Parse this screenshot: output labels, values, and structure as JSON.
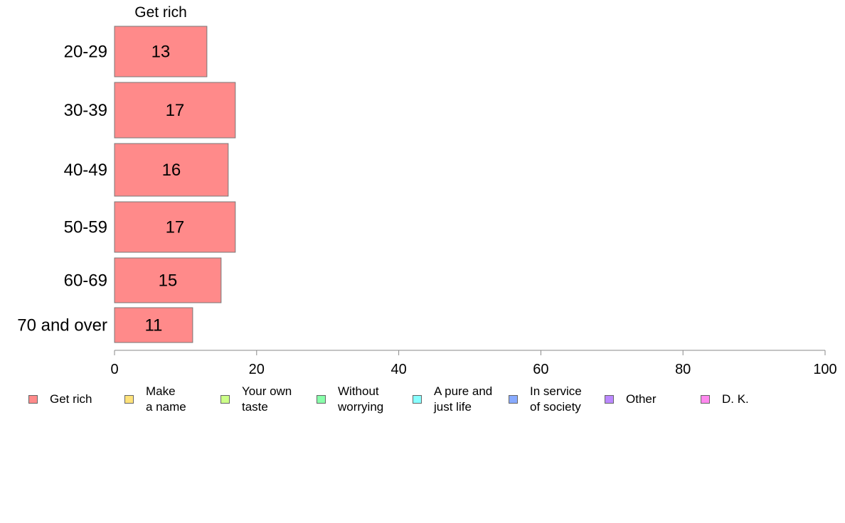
{
  "chart_data": {
    "type": "bar",
    "orientation": "horizontal",
    "panel_title": "Get rich",
    "categories": [
      "20-29",
      "30-39",
      "40-49",
      "50-59",
      "60-69",
      "70 and over"
    ],
    "series": [
      {
        "name": "Get rich",
        "color": "#ff8a8a",
        "values": [
          13,
          17,
          16,
          17,
          15,
          11
        ]
      }
    ],
    "xlim": [
      0,
      100
    ],
    "xticks": [
      0,
      20,
      40,
      60,
      80,
      100
    ],
    "grid": false,
    "legend_position": "bottom",
    "legend": [
      {
        "label": "Get rich",
        "color": "#ff8a8a"
      },
      {
        "label": "Make\na name",
        "color": "#ffe27a"
      },
      {
        "label": "Your own\ntaste",
        "color": "#ccff88"
      },
      {
        "label": "Without\nworrying",
        "color": "#88ffaa"
      },
      {
        "label": "A pure and\njust life",
        "color": "#88ffff"
      },
      {
        "label": "In service\nof society",
        "color": "#88aaff"
      },
      {
        "label": "Other",
        "color": "#bb88ff"
      },
      {
        "label": "D. K.",
        "color": "#ff88ee"
      }
    ]
  }
}
